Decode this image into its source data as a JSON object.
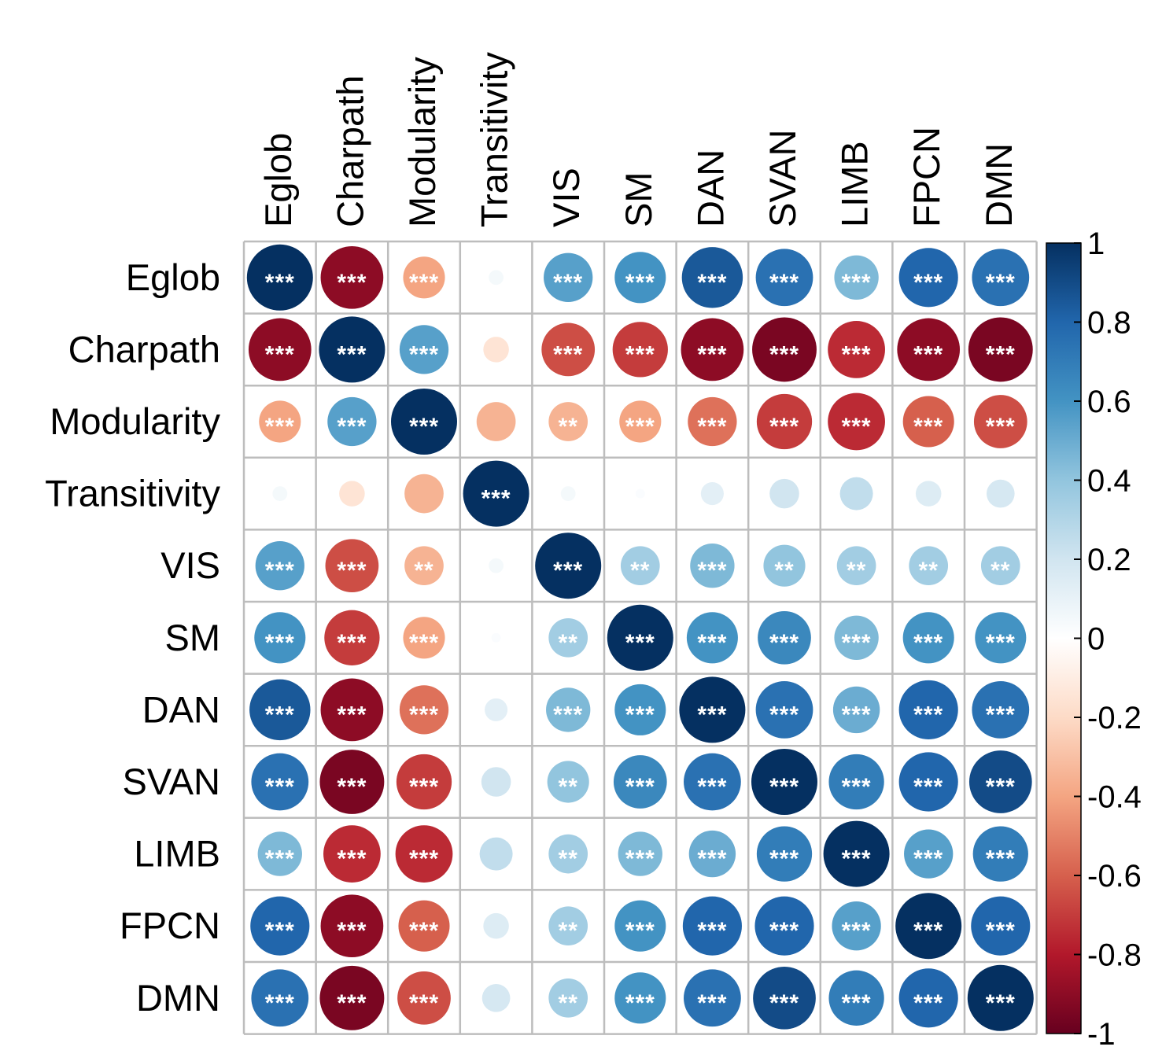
{
  "chart_data": {
    "type": "heatmap",
    "style": "correlation-circles",
    "title": "",
    "labels": [
      "Eglob",
      "Charpath",
      "Modularity",
      "Transitivity",
      "VIS",
      "SM",
      "DAN",
      "SVAN",
      "LIMB",
      "FPCN",
      "DMN"
    ],
    "matrix": [
      [
        1,
        -0.9,
        -0.4,
        0.05,
        0.55,
        0.6,
        0.85,
        0.75,
        0.45,
        0.8,
        0.75
      ],
      [
        -0.9,
        1,
        0.55,
        -0.15,
        -0.65,
        -0.7,
        -0.9,
        -0.95,
        -0.75,
        -0.9,
        -0.95
      ],
      [
        -0.4,
        0.55,
        1,
        -0.35,
        -0.35,
        -0.4,
        -0.55,
        -0.7,
        -0.75,
        -0.6,
        -0.65
      ],
      [
        0.05,
        -0.15,
        -0.35,
        1,
        0.05,
        0.02,
        0.12,
        0.2,
        0.25,
        0.15,
        0.18
      ],
      [
        0.55,
        -0.65,
        -0.35,
        0.05,
        1,
        0.35,
        0.45,
        0.4,
        0.35,
        0.35,
        0.35
      ],
      [
        0.6,
        -0.7,
        -0.4,
        0.02,
        0.35,
        1,
        0.6,
        0.65,
        0.45,
        0.6,
        0.6
      ],
      [
        0.85,
        -0.9,
        -0.55,
        0.12,
        0.45,
        0.6,
        1,
        0.75,
        0.5,
        0.8,
        0.75
      ],
      [
        0.75,
        -0.95,
        -0.7,
        0.2,
        0.4,
        0.65,
        0.75,
        1,
        0.7,
        0.8,
        0.9
      ],
      [
        0.45,
        -0.75,
        -0.75,
        0.25,
        0.35,
        0.45,
        0.5,
        0.7,
        1,
        0.55,
        0.7
      ],
      [
        0.8,
        -0.9,
        -0.6,
        0.15,
        0.35,
        0.6,
        0.8,
        0.8,
        0.55,
        1,
        0.8
      ],
      [
        0.75,
        -0.95,
        -0.65,
        0.18,
        0.35,
        0.6,
        0.75,
        0.9,
        0.7,
        0.8,
        1
      ]
    ],
    "significance": [
      [
        "***",
        "***",
        "***",
        "",
        "***",
        "***",
        "***",
        "***",
        "***",
        "***",
        "***"
      ],
      [
        "***",
        "***",
        "***",
        "",
        "***",
        "***",
        "***",
        "***",
        "***",
        "***",
        "***"
      ],
      [
        "***",
        "***",
        "***",
        "",
        "**",
        "***",
        "***",
        "***",
        "***",
        "***",
        "***"
      ],
      [
        "",
        "",
        "",
        "***",
        "",
        "",
        "",
        "",
        "",
        "",
        ""
      ],
      [
        "***",
        "***",
        "**",
        "",
        "***",
        "**",
        "***",
        "**",
        "**",
        "**",
        "**"
      ],
      [
        "***",
        "***",
        "***",
        "",
        "**",
        "***",
        "***",
        "***",
        "***",
        "***",
        "***"
      ],
      [
        "***",
        "***",
        "***",
        "",
        "***",
        "***",
        "***",
        "***",
        "***",
        "***",
        "***"
      ],
      [
        "***",
        "***",
        "***",
        "",
        "**",
        "***",
        "***",
        "***",
        "***",
        "***",
        "***"
      ],
      [
        "***",
        "***",
        "***",
        "",
        "**",
        "***",
        "***",
        "***",
        "***",
        "***",
        "***"
      ],
      [
        "***",
        "***",
        "***",
        "",
        "**",
        "***",
        "***",
        "***",
        "***",
        "***",
        "***"
      ],
      [
        "***",
        "***",
        "***",
        "",
        "**",
        "***",
        "***",
        "***",
        "***",
        "***",
        "***"
      ]
    ],
    "colorbar": {
      "range": [
        -1,
        1
      ],
      "ticks": [
        "1",
        "0.8",
        "0.6",
        "0.4",
        "0.2",
        "0",
        "-0.2",
        "-0.4",
        "-0.6",
        "-0.8",
        "-1"
      ],
      "colors": [
        "#67001F",
        "#B2182B",
        "#D6604D",
        "#F4A582",
        "#FDDBC7",
        "#FFFFFF",
        "#D1E5F0",
        "#92C5DE",
        "#4393C3",
        "#2166AC",
        "#053061"
      ],
      "placement": "right"
    },
    "grid": true
  }
}
